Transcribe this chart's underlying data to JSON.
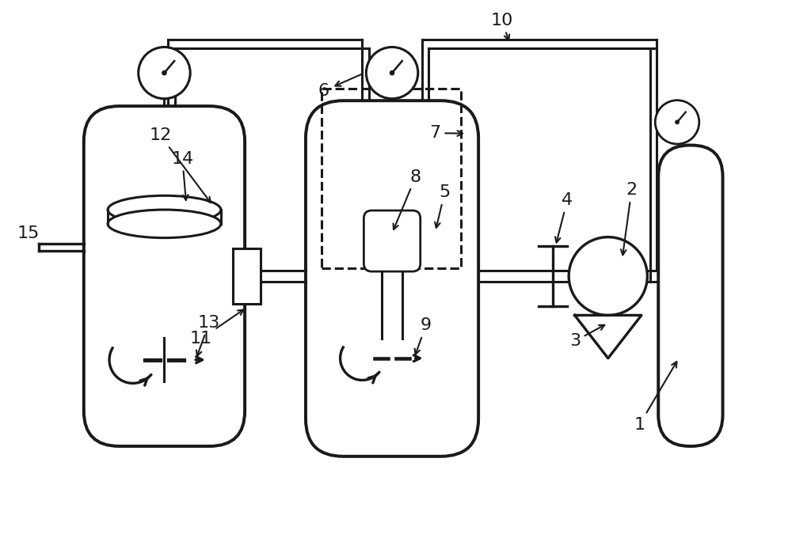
{
  "background_color": "#ffffff",
  "line_color": "#1a1a1a",
  "lw": 2.2,
  "font_size": 16
}
